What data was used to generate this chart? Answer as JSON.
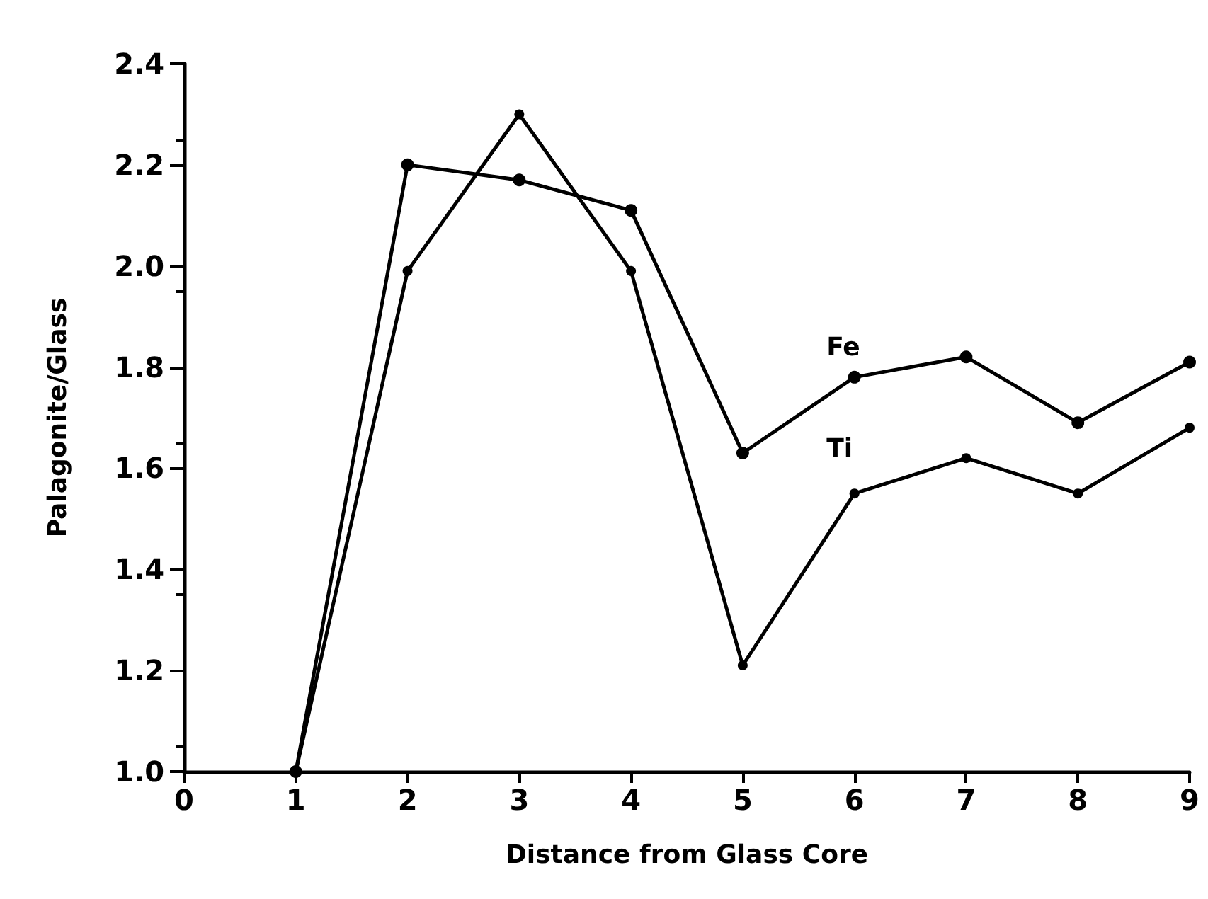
{
  "chart_data": {
    "type": "line",
    "xlabel": "Distance from Glass Core",
    "ylabel": "Palagonite/Glass",
    "x": [
      1,
      2,
      3,
      4,
      5,
      6,
      7,
      8,
      9
    ],
    "series": [
      {
        "name": "Fe",
        "color": "#000000",
        "values": [
          1.0,
          2.2,
          2.17,
          2.11,
          1.63,
          1.78,
          1.82,
          1.69,
          1.81
        ]
      },
      {
        "name": "Ti",
        "color": "#000000",
        "values": [
          1.0,
          1.99,
          2.3,
          1.99,
          1.21,
          1.55,
          1.62,
          1.55,
          1.68
        ]
      }
    ],
    "xlim": [
      0,
      9
    ],
    "xticks": [
      0,
      1,
      2,
      3,
      4,
      5,
      6,
      7,
      8,
      9
    ],
    "ylim": [
      1.0,
      2.4
    ],
    "yticks": [
      {
        "value": 1.0,
        "label": "1.0"
      },
      {
        "value": 1.2,
        "label": "1.2"
      },
      {
        "value": 1.4,
        "label": "1.4"
      },
      {
        "value": 1.6,
        "label": "1.6"
      },
      {
        "value": 1.8,
        "label": "1.8"
      },
      {
        "value": 2.0,
        "label": "2.0"
      },
      {
        "value": 2.2,
        "label": "2.2"
      },
      {
        "value": 2.4,
        "label": "2.4"
      }
    ],
    "grid": false,
    "legend": false,
    "marker": "circle",
    "line_style": "solid"
  }
}
